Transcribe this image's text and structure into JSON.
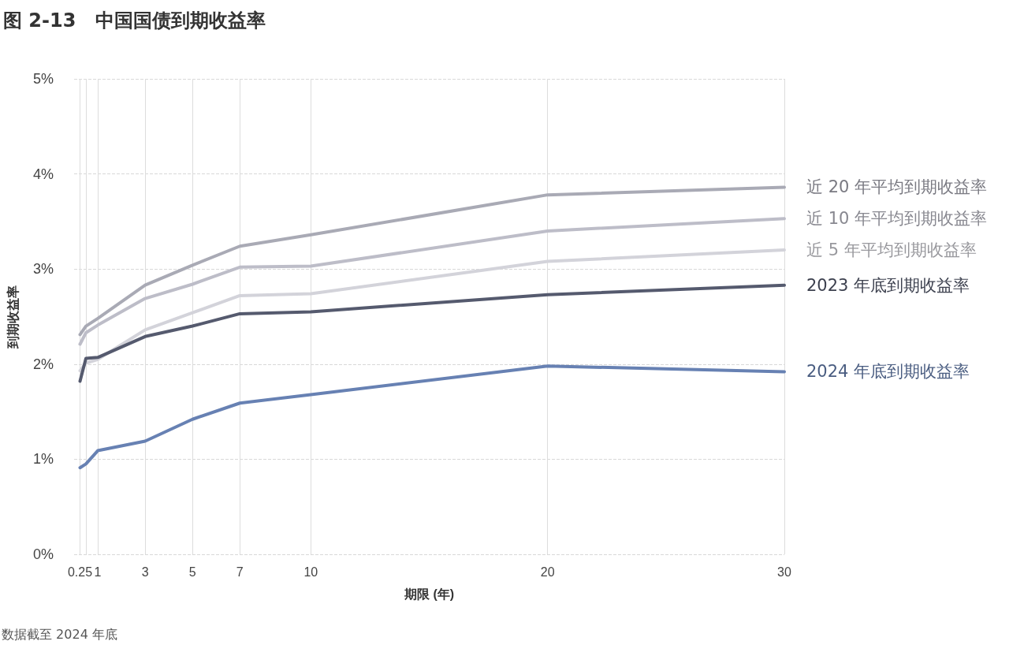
{
  "chart_data": {
    "type": "line",
    "title": "图 2-13   中国国债到期收益率",
    "xlabel": "期限 (年)",
    "ylabel": "到期收益率",
    "annotations": [
      "数据截至 2024 年底"
    ],
    "x": [
      0.25,
      0.5,
      1,
      3,
      5,
      7,
      10,
      20,
      30
    ],
    "xlim": [
      0,
      30
    ],
    "xticks": [
      0.25,
      {
        "value": 0.5,
        "label": null
      },
      1,
      3,
      5,
      7,
      10,
      20,
      30
    ],
    "ylim": [
      0,
      5
    ],
    "yticks": [
      {
        "value": 0,
        "label": "0%"
      },
      {
        "value": 1,
        "label": "1%"
      },
      {
        "value": 2,
        "label": "2%"
      },
      {
        "value": 3,
        "label": "3%"
      },
      {
        "value": 4,
        "label": "4%"
      },
      {
        "value": 5,
        "label": "5%"
      }
    ],
    "grid": true,
    "legend": false,
    "marker": "none",
    "line_style": "solid",
    "series": [
      {
        "name": "近 20 年平均到期收益率",
        "color": "#a9aab5",
        "values": [
          2.31,
          2.4,
          2.48,
          2.83,
          3.04,
          3.24,
          3.36,
          3.78,
          3.86
        ]
      },
      {
        "name": "近 10 年平均到期收益率",
        "color": "#bdbdc8",
        "values": [
          2.21,
          2.33,
          2.41,
          2.69,
          2.84,
          3.02,
          3.03,
          3.4,
          3.53
        ]
      },
      {
        "name": "近 5 年平均到期收益率",
        "color": "#d3d3da",
        "values": [
          1.93,
          2.01,
          2.05,
          2.36,
          2.54,
          2.72,
          2.74,
          3.08,
          3.2
        ]
      },
      {
        "name": "2023 年底到期收益率",
        "color": "#555a6e",
        "values": [
          1.82,
          2.06,
          2.07,
          2.29,
          2.4,
          2.53,
          2.55,
          2.73,
          2.83
        ]
      },
      {
        "name": "2024 年底到期收益率",
        "color": "#6781b3",
        "values": [
          0.91,
          0.95,
          1.09,
          1.19,
          1.42,
          1.59,
          1.68,
          1.98,
          1.92
        ]
      }
    ]
  }
}
